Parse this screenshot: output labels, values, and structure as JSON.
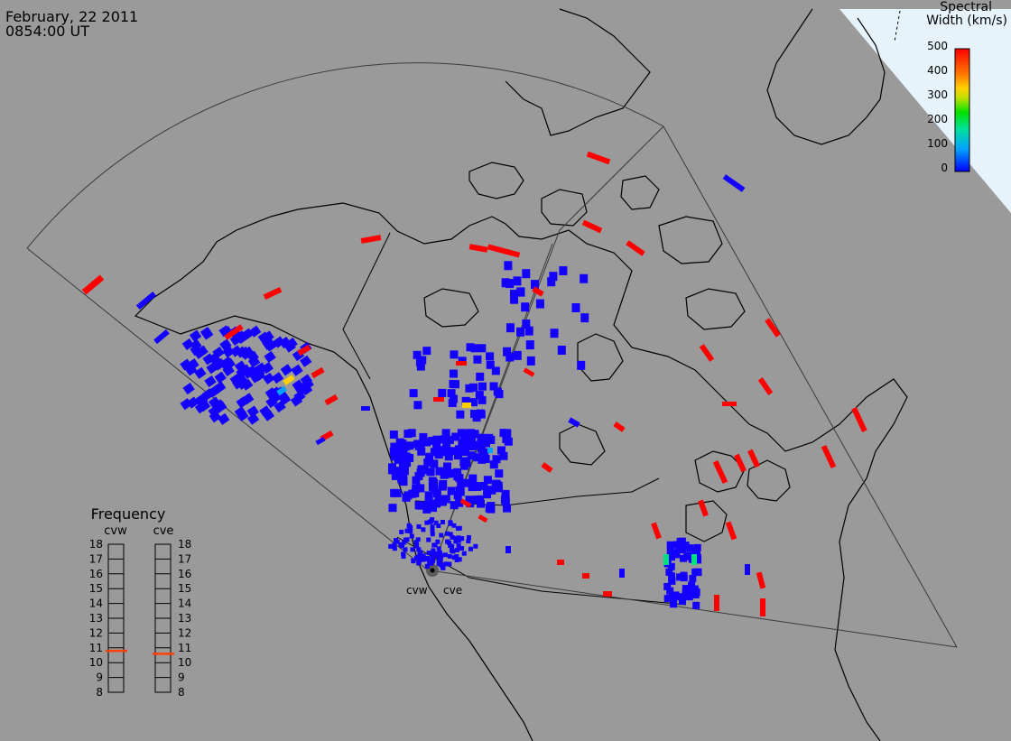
{
  "header": {
    "date": "February, 22 2011",
    "time": "0854:00 UT"
  },
  "colorbar": {
    "title_line1": "Spectral",
    "title_line2": "Width (km/s)",
    "ticks": [
      "500",
      "400",
      "300",
      "200",
      "100",
      "0"
    ],
    "colors": [
      "#0000ff",
      "#00a0ff",
      "#00e0a0",
      "#00e000",
      "#c0e000",
      "#ffd000",
      "#ff8000",
      "#ff0000"
    ]
  },
  "frequency": {
    "title": "Frequency",
    "left_label": "cvw",
    "right_label": "cve",
    "scale": [
      "18",
      "17",
      "16",
      "15",
      "14",
      "13",
      "12",
      "11",
      "10",
      "9",
      "8"
    ],
    "cvw_value_mhz": 10.8,
    "cve_value_mhz": 10.6,
    "marker_color": "#ff4000"
  },
  "stations": [
    {
      "name": "cvw"
    },
    {
      "name": "cve"
    }
  ],
  "colors": {
    "background": "#9a9a9a",
    "ice": "#e8f4fc",
    "low": "#1400ff",
    "high": "#ff0000"
  }
}
